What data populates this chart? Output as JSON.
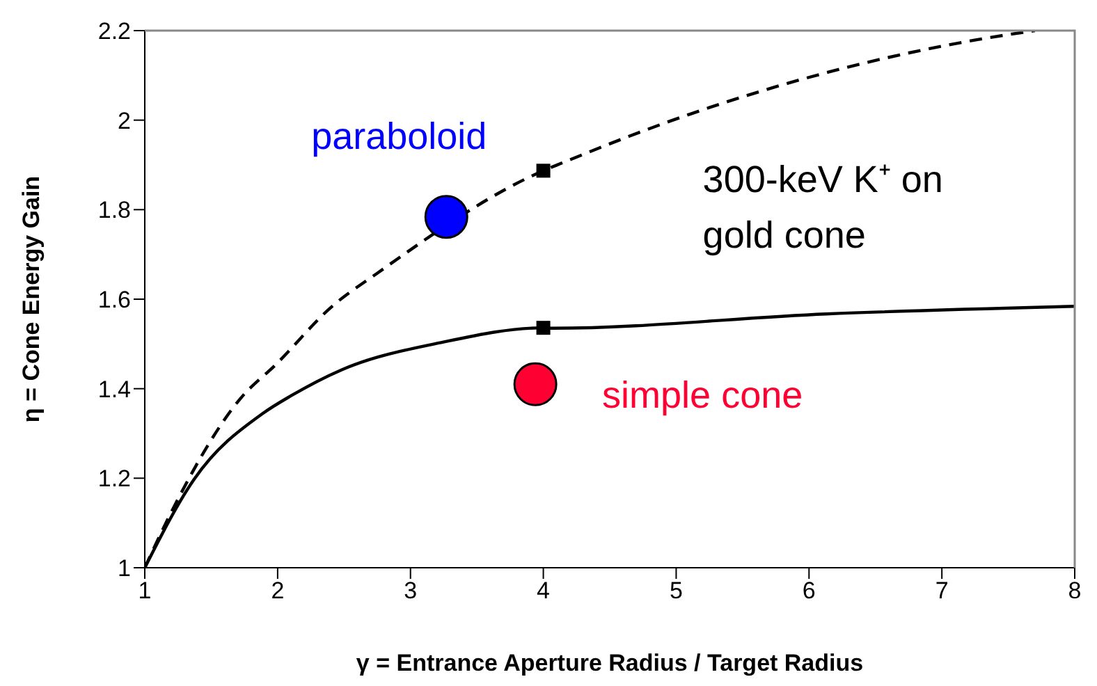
{
  "chart_data": {
    "type": "line",
    "xlabel": "γ = Entrance Aperture Radius / Target Radius",
    "ylabel": "η = Cone Energy Gain",
    "xlim": [
      1,
      8
    ],
    "xticks": [
      1,
      2,
      3,
      4,
      5,
      6,
      7,
      8
    ],
    "ylim": [
      1,
      2.2
    ],
    "yticks": [
      1,
      1.2,
      1.4,
      1.6,
      1.8,
      2,
      2.2
    ],
    "annotations": [
      "300-keV K⁺ on gold cone"
    ],
    "series": [
      {
        "line_style": "dashed",
        "color": "#000000",
        "x": [
          1,
          1.23,
          1.72,
          1.99,
          2.41,
          2.75,
          4,
          4.13,
          5.1,
          6.3,
          7.27,
          7.7
        ],
        "values": [
          1,
          1.142,
          1.378,
          1.455,
          1.584,
          1.658,
          1.887,
          1.903,
          2.013,
          2.119,
          2.18,
          2.2
        ]
      },
      {
        "line_style": "solid",
        "color": "#000000",
        "x": [
          1,
          1.37,
          1.89,
          2.1,
          2.48,
          3.23,
          4,
          4.07,
          6.13,
          8
        ],
        "values": [
          1,
          1.197,
          1.345,
          1.384,
          1.442,
          1.503,
          1.536,
          1.535,
          1.567,
          1.584
        ]
      },
      {
        "type": "scatter",
        "marker": "square",
        "color": "#000000",
        "x": [
          4,
          4
        ],
        "values": [
          1.887,
          1.536
        ]
      },
      {
        "type": "scatter",
        "marker": "circle",
        "name": "paraboloid",
        "color": "#0000ff",
        "x": [
          3.27
        ],
        "values": [
          1.784
        ]
      },
      {
        "type": "scatter",
        "marker": "circle",
        "name": "simple cone",
        "color": "#ff0033",
        "x": [
          3.94
        ],
        "values": [
          1.41
        ]
      }
    ]
  }
}
